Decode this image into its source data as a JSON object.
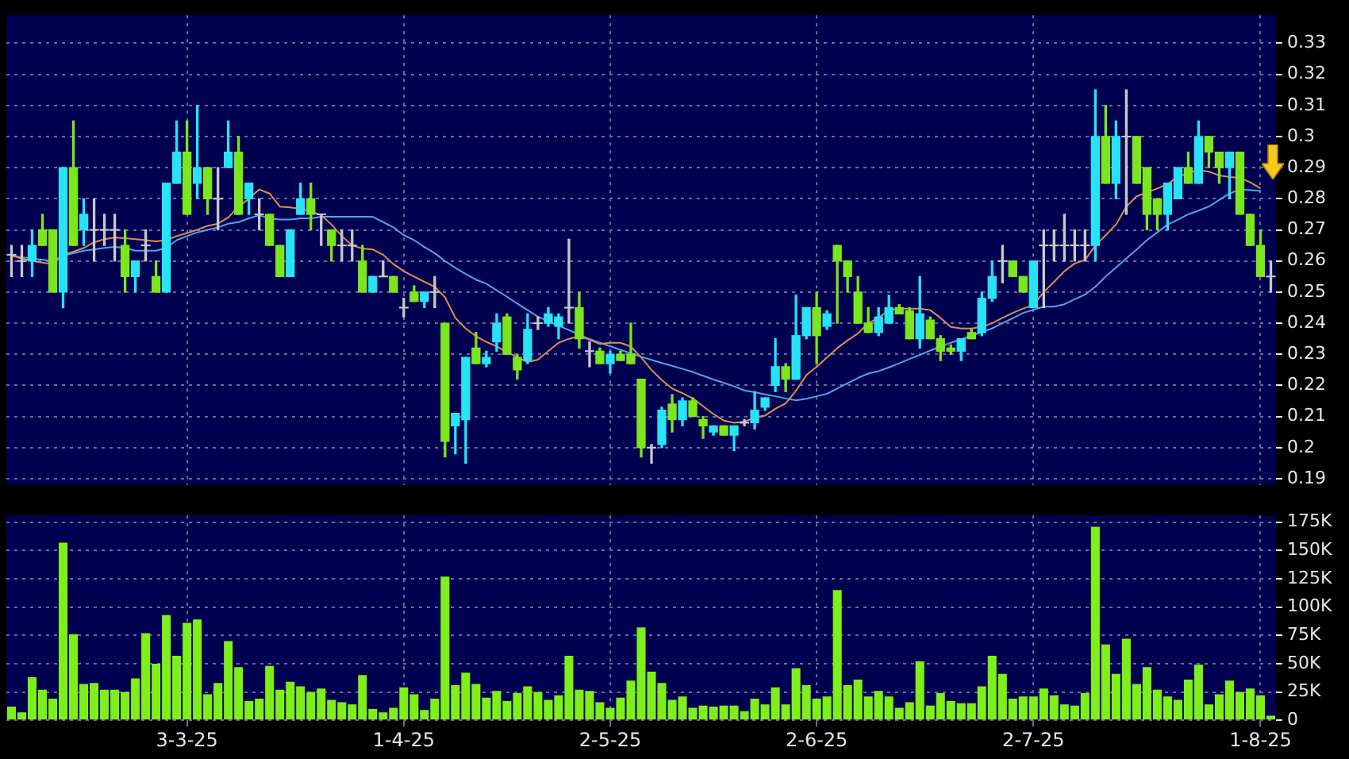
{
  "chart_data": [
    {
      "type": "candlestick",
      "categories": [
        null,
        null,
        null,
        null,
        null,
        null,
        null,
        null,
        null,
        null,
        null,
        null,
        null,
        null,
        null,
        null,
        null,
        null,
        null,
        null,
        null,
        null,
        null,
        null,
        null,
        null,
        null,
        null,
        null,
        null,
        null,
        null,
        null,
        null,
        null,
        null,
        null,
        null,
        null,
        null,
        null,
        null,
        null,
        null,
        null,
        null,
        null,
        null,
        null,
        null,
        null,
        null,
        null,
        null,
        null,
        null,
        null,
        null,
        null,
        null,
        null,
        null,
        null,
        null,
        null,
        null,
        null,
        null,
        null,
        null,
        null,
        null,
        null,
        null,
        null,
        null,
        null,
        null,
        null,
        null,
        null,
        null,
        null,
        null,
        null,
        null,
        null,
        null,
        null,
        null,
        null,
        null,
        null,
        null,
        null,
        null,
        null,
        null,
        null,
        null,
        null,
        null,
        null,
        null,
        null,
        null,
        null,
        null,
        null,
        null,
        null,
        null,
        null,
        null,
        null,
        null,
        null,
        null,
        null,
        null,
        null,
        null,
        null
      ],
      "ohlc": [
        [
          0.262,
          0.265,
          0.255,
          0.262
        ],
        [
          0.26,
          0.265,
          0.255,
          0.26
        ],
        [
          0.26,
          0.27,
          0.255,
          0.265
        ],
        [
          0.27,
          0.275,
          0.265,
          0.265
        ],
        [
          0.27,
          0.27,
          0.25,
          0.25
        ],
        [
          0.25,
          0.29,
          0.245,
          0.29
        ],
        [
          0.29,
          0.305,
          0.265,
          0.265
        ],
        [
          0.27,
          0.28,
          0.265,
          0.275
        ],
        [
          0.27,
          0.28,
          0.26,
          0.27
        ],
        [
          0.27,
          0.275,
          0.265,
          0.27
        ],
        [
          0.27,
          0.275,
          0.26,
          0.27
        ],
        [
          0.265,
          0.27,
          0.25,
          0.255
        ],
        [
          0.255,
          0.26,
          0.25,
          0.26
        ],
        [
          0.265,
          0.27,
          0.26,
          0.265
        ],
        [
          0.255,
          0.26,
          0.25,
          0.25
        ],
        [
          0.25,
          0.285,
          0.25,
          0.285
        ],
        [
          0.285,
          0.305,
          0.285,
          0.295
        ],
        [
          0.295,
          0.305,
          0.275,
          0.275
        ],
        [
          0.285,
          0.31,
          0.28,
          0.29
        ],
        [
          0.29,
          0.29,
          0.275,
          0.28
        ],
        [
          0.28,
          0.29,
          0.27,
          0.28
        ],
        [
          0.29,
          0.305,
          0.29,
          0.295
        ],
        [
          0.295,
          0.3,
          0.275,
          0.275
        ],
        [
          0.28,
          0.285,
          0.275,
          0.285
        ],
        [
          0.275,
          0.28,
          0.27,
          0.275
        ],
        [
          0.275,
          0.275,
          0.265,
          0.265
        ],
        [
          0.265,
          0.265,
          0.255,
          0.255
        ],
        [
          0.255,
          0.27,
          0.255,
          0.27
        ],
        [
          0.275,
          0.285,
          0.275,
          0.28
        ],
        [
          0.28,
          0.285,
          0.27,
          0.275
        ],
        [
          0.275,
          0.275,
          0.265,
          0.275
        ],
        [
          0.27,
          0.27,
          0.26,
          0.265
        ],
        [
          0.265,
          0.27,
          0.26,
          0.265
        ],
        [
          0.265,
          0.27,
          0.26,
          0.265
        ],
        [
          0.26,
          0.265,
          0.25,
          0.25
        ],
        [
          0.25,
          0.255,
          0.25,
          0.255
        ],
        [
          0.255,
          0.26,
          0.255,
          0.255
        ],
        [
          0.255,
          0.255,
          0.25,
          0.25
        ],
        [
          0.245,
          0.248,
          0.242,
          0.245
        ],
        [
          0.25,
          0.252,
          0.247,
          0.247
        ],
        [
          0.247,
          0.25,
          0.245,
          0.25
        ],
        [
          0.25,
          0.255,
          0.245,
          0.25
        ],
        [
          0.24,
          0.24,
          0.197,
          0.202
        ],
        [
          0.207,
          0.211,
          0.198,
          0.211
        ],
        [
          0.209,
          0.229,
          0.195,
          0.229
        ],
        [
          0.232,
          0.237,
          0.227,
          0.227
        ],
        [
          0.227,
          0.231,
          0.226,
          0.229
        ],
        [
          0.234,
          0.243,
          0.231,
          0.24
        ],
        [
          0.242,
          0.243,
          0.23,
          0.23
        ],
        [
          0.229,
          0.23,
          0.222,
          0.225
        ],
        [
          0.228,
          0.243,
          0.227,
          0.238
        ],
        [
          0.24,
          0.242,
          0.238,
          0.24
        ],
        [
          0.24,
          0.245,
          0.239,
          0.243
        ],
        [
          0.239,
          0.243,
          0.235,
          0.242
        ],
        [
          0.245,
          0.267,
          0.24,
          0.245
        ],
        [
          0.245,
          0.25,
          0.232,
          0.235
        ],
        [
          0.231,
          0.234,
          0.226,
          0.231
        ],
        [
          0.231,
          0.232,
          0.227,
          0.227
        ],
        [
          0.227,
          0.231,
          0.224,
          0.23
        ],
        [
          0.23,
          0.231,
          0.228,
          0.228
        ],
        [
          0.23,
          0.24,
          0.227,
          0.227
        ],
        [
          0.222,
          0.222,
          0.197,
          0.2
        ],
        [
          0.2,
          0.201,
          0.195,
          0.2
        ],
        [
          0.201,
          0.213,
          0.2,
          0.212
        ],
        [
          0.214,
          0.217,
          0.205,
          0.209
        ],
        [
          0.209,
          0.216,
          0.207,
          0.215
        ],
        [
          0.215,
          0.216,
          0.21,
          0.21
        ],
        [
          0.209,
          0.21,
          0.203,
          0.207
        ],
        [
          0.205,
          0.207,
          0.204,
          0.207
        ],
        [
          0.207,
          0.207,
          0.204,
          0.204
        ],
        [
          0.204,
          0.207,
          0.199,
          0.207
        ],
        [
          0.208,
          0.209,
          0.207,
          0.208
        ],
        [
          0.208,
          0.218,
          0.206,
          0.212
        ],
        [
          0.213,
          0.216,
          0.212,
          0.216
        ],
        [
          0.22,
          0.235,
          0.218,
          0.226
        ],
        [
          0.226,
          0.227,
          0.218,
          0.222
        ],
        [
          0.222,
          0.249,
          0.222,
          0.236
        ],
        [
          0.236,
          0.245,
          0.235,
          0.245
        ],
        [
          0.245,
          0.25,
          0.227,
          0.236
        ],
        [
          0.239,
          0.244,
          0.238,
          0.243
        ],
        [
          0.265,
          0.265,
          0.24,
          0.26
        ],
        [
          0.26,
          0.26,
          0.25,
          0.255
        ],
        [
          0.25,
          0.255,
          0.24,
          0.24
        ],
        [
          0.24,
          0.245,
          0.237,
          0.237
        ],
        [
          0.237,
          0.245,
          0.236,
          0.242
        ],
        [
          0.24,
          0.249,
          0.24,
          0.245
        ],
        [
          0.245,
          0.246,
          0.243,
          0.243
        ],
        [
          0.244,
          0.245,
          0.235,
          0.235
        ],
        [
          0.235,
          0.255,
          0.232,
          0.243
        ],
        [
          0.241,
          0.242,
          0.235,
          0.235
        ],
        [
          0.235,
          0.236,
          0.228,
          0.231
        ],
        [
          0.232,
          0.233,
          0.23,
          0.231
        ],
        [
          0.231,
          0.235,
          0.228,
          0.235
        ],
        [
          0.237,
          0.238,
          0.235,
          0.235
        ],
        [
          0.237,
          0.25,
          0.236,
          0.248
        ],
        [
          0.248,
          0.26,
          0.247,
          0.255
        ],
        [
          0.26,
          0.265,
          0.253,
          0.26
        ],
        [
          0.26,
          0.26,
          0.255,
          0.255
        ],
        [
          0.255,
          0.255,
          0.25,
          0.25
        ],
        [
          0.245,
          0.26,
          0.245,
          0.26
        ],
        [
          0.265,
          0.27,
          0.245,
          0.265
        ],
        [
          0.265,
          0.27,
          0.26,
          0.265
        ],
        [
          0.265,
          0.275,
          0.26,
          0.265
        ],
        [
          0.265,
          0.27,
          0.26,
          0.265
        ],
        [
          0.265,
          0.27,
          0.26,
          0.265
        ],
        [
          0.265,
          0.315,
          0.26,
          0.3
        ],
        [
          0.3,
          0.31,
          0.285,
          0.285
        ],
        [
          0.285,
          0.305,
          0.28,
          0.3
        ],
        [
          0.3,
          0.315,
          0.275,
          0.3
        ],
        [
          0.3,
          0.3,
          0.285,
          0.285
        ],
        [
          0.29,
          0.29,
          0.27,
          0.275
        ],
        [
          0.28,
          0.28,
          0.27,
          0.275
        ],
        [
          0.275,
          0.285,
          0.27,
          0.285
        ],
        [
          0.28,
          0.29,
          0.28,
          0.29
        ],
        [
          0.29,
          0.295,
          0.285,
          0.285
        ],
        [
          0.285,
          0.305,
          0.285,
          0.3
        ],
        [
          0.3,
          0.3,
          0.29,
          0.295
        ],
        [
          0.295,
          0.295,
          0.285,
          0.29
        ],
        [
          0.29,
          0.295,
          0.28,
          0.295
        ],
        [
          0.295,
          0.295,
          0.275,
          0.275
        ],
        [
          0.275,
          0.275,
          0.265,
          0.265
        ],
        [
          0.265,
          0.27,
          0.255,
          0.255
        ],
        [
          0.255,
          0.26,
          0.25,
          0.255
        ]
      ],
      "colors": [
        "#c8c8c8",
        "#c8c8c8",
        "#27e3f5",
        "#7ce61c",
        "#7ce61c",
        "#27e3f5",
        "#7ce61c",
        "#27e3f5",
        "#c8c8c8",
        "#c8c8c8",
        "#c8c8c8",
        "#7ce61c",
        "#27e3f5",
        "#c8c8c8",
        "#7ce61c",
        "#27e3f5",
        "#27e3f5",
        "#7ce61c",
        "#27e3f5",
        "#7ce61c",
        "#c8c8c8",
        "#27e3f5",
        "#7ce61c",
        "#27e3f5",
        "#c8c8c8",
        "#7ce61c",
        "#7ce61c",
        "#27e3f5",
        "#27e3f5",
        "#7ce61c",
        "#c8c8c8",
        "#7ce61c",
        "#c8c8c8",
        "#c8c8c8",
        "#7ce61c",
        "#27e3f5",
        "#c8c8c8",
        "#7ce61c",
        "#c8c8c8",
        "#7ce61c",
        "#27e3f5",
        "#c8c8c8",
        "#7ce61c",
        "#27e3f5",
        "#27e3f5",
        "#7ce61c",
        "#27e3f5",
        "#27e3f5",
        "#7ce61c",
        "#7ce61c",
        "#27e3f5",
        "#c8c8c8",
        "#27e3f5",
        "#27e3f5",
        "#c8c8c8",
        "#7ce61c",
        "#c8c8c8",
        "#7ce61c",
        "#27e3f5",
        "#7ce61c",
        "#7ce61c",
        "#7ce61c",
        "#c8c8c8",
        "#27e3f5",
        "#7ce61c",
        "#27e3f5",
        "#7ce61c",
        "#7ce61c",
        "#27e3f5",
        "#7ce61c",
        "#27e3f5",
        "#c8c8c8",
        "#27e3f5",
        "#27e3f5",
        "#27e3f5",
        "#7ce61c",
        "#27e3f5",
        "#27e3f5",
        "#7ce61c",
        "#27e3f5",
        "#7ce61c",
        "#7ce61c",
        "#7ce61c",
        "#7ce61c",
        "#27e3f5",
        "#27e3f5",
        "#7ce61c",
        "#7ce61c",
        "#27e3f5",
        "#7ce61c",
        "#7ce61c",
        "#7ce61c",
        "#27e3f5",
        "#7ce61c",
        "#27e3f5",
        "#27e3f5",
        "#c8c8c8",
        "#7ce61c",
        "#7ce61c",
        "#27e3f5",
        "#c8c8c8",
        "#c8c8c8",
        "#c8c8c8",
        "#c8c8c8",
        "#c8c8c8",
        "#27e3f5",
        "#7ce61c",
        "#27e3f5",
        "#c8c8c8",
        "#7ce61c",
        "#7ce61c",
        "#7ce61c",
        "#27e3f5",
        "#27e3f5",
        "#7ce61c",
        "#27e3f5",
        "#7ce61c",
        "#7ce61c",
        "#27e3f5",
        "#7ce61c",
        "#7ce61c",
        "#7ce61c",
        "#c8c8c8"
      ],
      "series": [
        {
          "type": "line",
          "color": "#e48a50",
          "values": [
            0.2617,
            0.2608,
            0.26,
            0.2595,
            0.259,
            0.262,
            0.263,
            0.2642,
            0.266,
            0.267,
            0.2675,
            0.2673,
            0.267,
            0.2667,
            0.2663,
            0.2667,
            0.268,
            0.269,
            0.27,
            0.2713,
            0.272,
            0.274,
            0.2775,
            0.28,
            0.283,
            0.2817,
            0.2775,
            0.2772,
            0.2767,
            0.276,
            0.2747,
            0.2717,
            0.268,
            0.265,
            0.264,
            0.2637,
            0.262,
            0.259,
            0.2567,
            0.255,
            0.2533,
            0.2517,
            0.2483,
            0.2417,
            0.2383,
            0.2358,
            0.234,
            0.2325,
            0.2308,
            0.229,
            0.2275,
            0.2283,
            0.231,
            0.2337,
            0.235,
            0.2358,
            0.2347,
            0.2333,
            0.2337,
            0.2337,
            0.2325,
            0.229,
            0.225,
            0.2217,
            0.219,
            0.2175,
            0.2158,
            0.2133,
            0.2108,
            0.2087,
            0.208,
            0.2083,
            0.2097,
            0.2103,
            0.2125,
            0.2142,
            0.2183,
            0.2233,
            0.226,
            0.229,
            0.232,
            0.2345,
            0.2367,
            0.24,
            0.2417,
            0.2442,
            0.2447,
            0.2447,
            0.2447,
            0.2442,
            0.2417,
            0.2388,
            0.2383,
            0.2383,
            0.2388,
            0.24,
            0.2417,
            0.2433,
            0.2447,
            0.2458,
            0.25,
            0.2533,
            0.2567,
            0.2592,
            0.2603,
            0.265,
            0.2683,
            0.2717,
            0.2775,
            0.2808,
            0.282,
            0.2833,
            0.2847,
            0.287,
            0.2883,
            0.2892,
            0.2887,
            0.2875,
            0.287,
            0.2867,
            0.2853,
            0.2833,
            null
          ]
        },
        {
          "type": "line",
          "color": "#4ca6e6",
          "values": [
            0.2617,
            0.2612,
            0.2608,
            0.2604,
            0.26,
            0.2617,
            0.2625,
            0.2633,
            0.2637,
            0.2642,
            0.2645,
            0.2642,
            0.2633,
            0.2633,
            0.2633,
            0.2642,
            0.2667,
            0.268,
            0.2692,
            0.27,
            0.2708,
            0.272,
            0.2725,
            0.2737,
            0.2747,
            0.2737,
            0.2733,
            0.2733,
            0.2737,
            0.2737,
            0.2742,
            0.2742,
            0.2742,
            0.2742,
            0.2742,
            0.2742,
            0.2725,
            0.2708,
            0.2683,
            0.2667,
            0.2645,
            0.2625,
            0.26,
            0.2578,
            0.2558,
            0.254,
            0.2527,
            0.2506,
            0.2485,
            0.2463,
            0.2442,
            0.2421,
            0.2406,
            0.2392,
            0.2378,
            0.2363,
            0.2349,
            0.2337,
            0.2326,
            0.2314,
            0.2303,
            0.2292,
            0.2282,
            0.2272,
            0.2263,
            0.2253,
            0.2243,
            0.2231,
            0.2219,
            0.2208,
            0.2197,
            0.2184,
            0.2178,
            0.2171,
            0.2165,
            0.2158,
            0.2152,
            0.2157,
            0.2165,
            0.2173,
            0.219,
            0.2207,
            0.2224,
            0.2238,
            0.2246,
            0.2258,
            0.2271,
            0.2285,
            0.2298,
            0.2312,
            0.2325,
            0.2337,
            0.2348,
            0.236,
            0.2371,
            0.2383,
            0.24,
            0.2416,
            0.2433,
            0.2443,
            0.2453,
            0.2453,
            0.2461,
            0.2477,
            0.2492,
            0.2517,
            0.255,
            0.2579,
            0.2608,
            0.2637,
            0.2667,
            0.2692,
            0.2717,
            0.2733,
            0.275,
            0.2762,
            0.2775,
            0.2796,
            0.2817,
            0.283,
            0.2828,
            0.2825,
            null
          ]
        }
      ],
      "ylim": [
        0.188,
        0.339
      ],
      "yticks": [
        0.19,
        0.2,
        0.21,
        0.22,
        0.23,
        0.24,
        0.25,
        0.26,
        0.27,
        0.28,
        0.29,
        0.3,
        0.31,
        0.32,
        0.33
      ],
      "grid": true,
      "tick_labels": "y",
      "marker": "none"
    },
    {
      "type": "bar",
      "categories": [
        null,
        null,
        null,
        null,
        null,
        null,
        null,
        null,
        null,
        null,
        null,
        null,
        null,
        null,
        null,
        null,
        null,
        "3-3-25",
        null,
        null,
        null,
        null,
        null,
        null,
        null,
        null,
        null,
        null,
        null,
        null,
        null,
        null,
        null,
        null,
        null,
        null,
        null,
        null,
        "1-4-25",
        null,
        null,
        null,
        null,
        null,
        null,
        null,
        null,
        null,
        null,
        null,
        null,
        null,
        null,
        null,
        null,
        null,
        null,
        null,
        "2-5-25",
        null,
        null,
        null,
        null,
        null,
        null,
        null,
        null,
        null,
        null,
        null,
        null,
        null,
        null,
        null,
        null,
        null,
        null,
        null,
        "2-6-25",
        null,
        null,
        null,
        null,
        null,
        null,
        null,
        null,
        null,
        null,
        null,
        null,
        null,
        null,
        null,
        null,
        null,
        null,
        null,
        null,
        "2-7-25",
        null,
        null,
        null,
        null,
        null,
        null,
        null,
        null,
        null,
        null,
        null,
        null,
        null,
        null,
        null,
        null,
        null,
        null,
        null,
        null,
        null,
        "1-8-25",
        null
      ],
      "values": [
        12000,
        7000,
        38000,
        27000,
        19000,
        157000,
        76000,
        32000,
        33000,
        27000,
        27000,
        25000,
        37000,
        77000,
        50000,
        93000,
        57000,
        86000,
        89000,
        23000,
        33000,
        70000,
        47000,
        17000,
        19000,
        48000,
        27000,
        34000,
        30000,
        25000,
        28000,
        18000,
        16000,
        14000,
        40000,
        10000,
        7000,
        11000,
        29000,
        23000,
        9000,
        19000,
        127000,
        31000,
        42000,
        32000,
        20000,
        26000,
        17000,
        24000,
        30000,
        25000,
        18000,
        22000,
        57000,
        27000,
        26000,
        16000,
        11000,
        20000,
        35000,
        82000,
        43000,
        33000,
        18000,
        21000,
        11000,
        13000,
        12000,
        13000,
        13000,
        8000,
        19000,
        14000,
        29000,
        14000,
        46000,
        31000,
        19000,
        21000,
        115000,
        31000,
        36000,
        21000,
        26000,
        21000,
        11000,
        16000,
        52000,
        13000,
        24000,
        17000,
        15000,
        15000,
        30000,
        57000,
        41000,
        19000,
        21000,
        21000,
        28000,
        22000,
        14000,
        13000,
        24000,
        171000,
        67000,
        41000,
        72000,
        32000,
        47000,
        27000,
        21000,
        18000,
        36000,
        49000,
        14000,
        23000,
        35000,
        25000,
        28000,
        22000,
        4000
      ],
      "color": "#7fef1a",
      "ylim": [
        0,
        181000
      ],
      "yticks": [
        0,
        {
          "value": 25000,
          "label": "25K"
        },
        {
          "value": 50000,
          "label": "50K"
        },
        {
          "value": 75000,
          "label": "75K"
        },
        {
          "value": 100000,
          "label": "100K"
        },
        {
          "value": 125000,
          "label": "125K"
        },
        {
          "value": 150000,
          "label": "150K"
        },
        {
          "value": 175000,
          "label": "175K"
        }
      ],
      "grid": true
    }
  ]
}
